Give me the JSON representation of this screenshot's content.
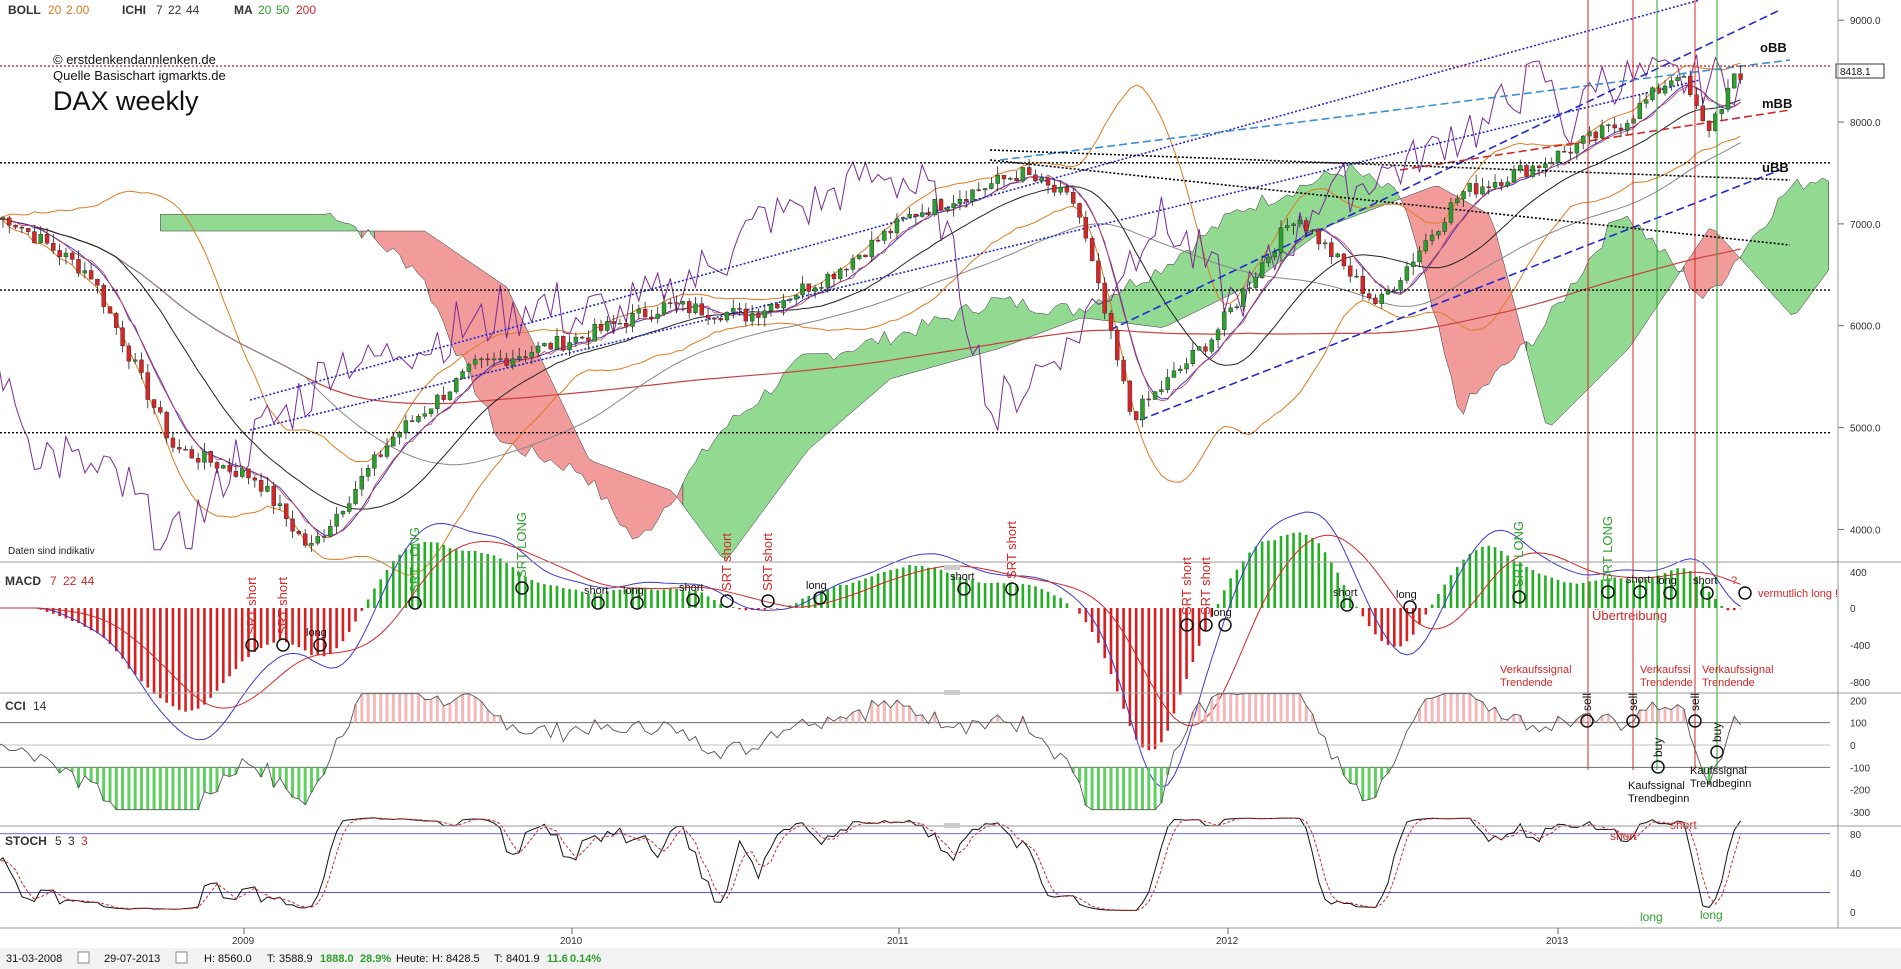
{
  "header": {
    "indicators": [
      {
        "name": "BOLL",
        "params": [
          "20",
          "2.00"
        ]
      },
      {
        "name": "ICHI",
        "params": [
          "7",
          "22",
          "44"
        ]
      },
      {
        "name": "MA",
        "params": [
          "20",
          "50",
          "200"
        ]
      }
    ]
  },
  "colors": {
    "price_up": "#2ca02c",
    "price_down": "#d62728",
    "ichimoku_bull": "#7fd27f",
    "ichimoku_bear": "#f08a8a",
    "boll": "#e07b20",
    "macd_up": "#22b022",
    "macd_down": "#d81e1e",
    "trend_blue": "#1f28d6",
    "oscillator": "#7a2a9a",
    "cci_pos": "#f4b8b8",
    "cci_neg": "#5fd05f"
  },
  "watermark": {
    "line1": "© erstdenkendannlenken.de",
    "line2": "Quelle Basischart igmarkts.de",
    "title": "DAX weekly",
    "disclaimer": "Daten sind indikativ"
  },
  "chart_data": [
    {
      "type": "candlestick",
      "title": "DAX weekly",
      "ylim": [
        3700,
        9100
      ],
      "y_ticks": [
        "9000.0",
        "8000.0",
        "7000.0",
        "6000.0",
        "5000.0",
        "4000.0"
      ],
      "last_price": "8418.1",
      "band_labels": [
        "oBB",
        "mBB",
        "uBB"
      ],
      "horizontal_levels": [
        8550,
        7600,
        6350,
        4950
      ],
      "x_labels": [
        "2009",
        "2010",
        "2011",
        "2012",
        "2013"
      ],
      "close_series": [
        {
          "date": "2008-04",
          "close": 7050
        },
        {
          "date": "2008-07",
          "close": 6500
        },
        {
          "date": "2008-10",
          "close": 4800
        },
        {
          "date": "2009-01",
          "close": 4500
        },
        {
          "date": "2009-03",
          "close": 3800
        },
        {
          "date": "2009-06",
          "close": 4900
        },
        {
          "date": "2009-09",
          "close": 5600
        },
        {
          "date": "2010-01",
          "close": 5900
        },
        {
          "date": "2010-04",
          "close": 6200
        },
        {
          "date": "2010-07",
          "close": 6100
        },
        {
          "date": "2010-10",
          "close": 6500
        },
        {
          "date": "2011-01",
          "close": 7100
        },
        {
          "date": "2011-05",
          "close": 7500
        },
        {
          "date": "2011-07",
          "close": 7200
        },
        {
          "date": "2011-09",
          "close": 5100
        },
        {
          "date": "2011-12",
          "close": 5900
        },
        {
          "date": "2012-03",
          "close": 7100
        },
        {
          "date": "2012-06",
          "close": 6200
        },
        {
          "date": "2012-09",
          "close": 7300
        },
        {
          "date": "2012-12",
          "close": 7600
        },
        {
          "date": "2013-03",
          "close": 8000
        },
        {
          "date": "2013-05",
          "close": 8500
        },
        {
          "date": "2013-06",
          "close": 7900
        },
        {
          "date": "2013-07",
          "close": 8400
        }
      ]
    },
    {
      "type": "macd",
      "name": "MACD",
      "params": [
        "7",
        "22",
        "44"
      ],
      "y_ticks": [
        "400",
        "0",
        "-400",
        "-800"
      ],
      "signals": [
        {
          "label": "SRT short",
          "color": "red",
          "vertical": true
        },
        {
          "label": "SRT short",
          "color": "red",
          "vertical": true
        },
        {
          "label": "long",
          "color": "black"
        },
        {
          "label": "SRT LONG",
          "color": "green",
          "vertical": true
        },
        {
          "label": "SRT LONG",
          "color": "green",
          "vertical": true
        },
        {
          "label": "short",
          "color": "black"
        },
        {
          "label": "long",
          "color": "black"
        },
        {
          "label": "short",
          "color": "black"
        },
        {
          "label": "SRT short",
          "color": "red",
          "vertical": true
        },
        {
          "label": "SRT short",
          "color": "red",
          "vertical": true
        },
        {
          "label": "long",
          "color": "black"
        },
        {
          "label": "short",
          "color": "black"
        },
        {
          "label": "SRT short",
          "color": "red",
          "vertical": true
        },
        {
          "label": "SRT short",
          "color": "red",
          "vertical": true
        },
        {
          "label": "SRT short",
          "color": "red",
          "vertical": true
        },
        {
          "label": "long",
          "color": "black"
        },
        {
          "label": "short",
          "color": "black"
        },
        {
          "label": "long",
          "color": "black"
        },
        {
          "label": "SRT LONG",
          "color": "green",
          "vertical": true
        },
        {
          "label": "SRT LONG",
          "color": "green",
          "vertical": true
        },
        {
          "label": "short",
          "color": "black"
        },
        {
          "label": "long",
          "color": "black"
        },
        {
          "label": "short",
          "color": "black"
        },
        {
          "label": "?",
          "color": "red"
        }
      ],
      "annotations": [
        "vermutlich long !",
        "Übertreibung"
      ]
    },
    {
      "type": "cci",
      "name": "CCI",
      "params": [
        "14"
      ],
      "y_ticks": [
        "200",
        "100",
        "0",
        "-100",
        "-200",
        "-300"
      ],
      "signals": [
        {
          "label": "sell",
          "color": "black"
        },
        {
          "label": "sell",
          "color": "black"
        },
        {
          "label": "buy",
          "color": "black"
        },
        {
          "label": "sell",
          "color": "black"
        },
        {
          "label": "buy",
          "color": "black"
        }
      ],
      "annotations": [
        {
          "lines": [
            "Verkaufssignal",
            "Trendende"
          ],
          "color": "red"
        },
        {
          "lines": [
            "Verkaufssi",
            "Trendende"
          ],
          "color": "red"
        },
        {
          "lines": [
            "Verkaufssignal",
            "Trendende"
          ],
          "color": "red"
        },
        {
          "lines": [
            "Kaufssignal",
            "Trendbeginn"
          ],
          "color": "black"
        },
        {
          "lines": [
            "Kaufssignal",
            "Trendbeginn"
          ],
          "color": "black"
        }
      ]
    },
    {
      "type": "stochastic",
      "name": "STOCH",
      "params": [
        "5",
        "3",
        "3"
      ],
      "y_ticks": [
        "80",
        "40",
        "0"
      ],
      "signals": [
        {
          "label": "short",
          "color": "red"
        },
        {
          "label": "short",
          "color": "red"
        },
        {
          "label": "long",
          "color": "green"
        },
        {
          "label": "long",
          "color": "green"
        }
      ]
    }
  ],
  "footer": {
    "date_from": "31-03-2008",
    "date_to": "29-07-2013",
    "high_label": "H:",
    "high": "8560.0",
    "low_label": "T:",
    "low": "3588.9",
    "change": "1888.0",
    "change_pct": "28.9%",
    "today_label": "Heute:",
    "today_high_label": "H:",
    "today_high": "8428.5",
    "today_low_label": "T:",
    "today_low": "8401.9",
    "today_change": "11.6",
    "today_change_pct": "0.14%"
  }
}
